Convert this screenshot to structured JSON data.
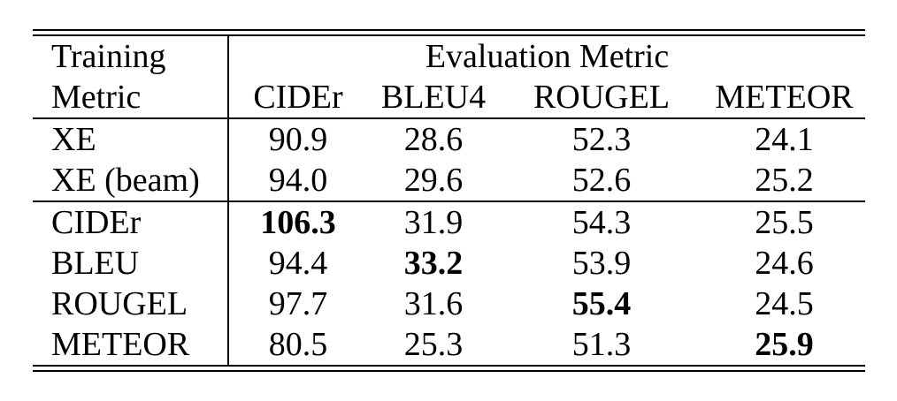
{
  "page": {
    "background_color": "#ffffff",
    "text_color": "#000000"
  },
  "table": {
    "row_header": {
      "line1": "Training",
      "line2": "Metric"
    },
    "group_header": "Evaluation Metric",
    "columns": [
      "CIDEr",
      "BLEU4",
      "ROUGEL",
      "METEOR"
    ],
    "groups": [
      {
        "rows": [
          {
            "label": "XE",
            "values": [
              "90.9",
              "28.6",
              "52.3",
              "24.1"
            ],
            "bold_index": null
          },
          {
            "label": "XE (beam)",
            "values": [
              "94.0",
              "29.6",
              "52.6",
              "25.2"
            ],
            "bold_index": null
          }
        ]
      },
      {
        "rows": [
          {
            "label": "CIDEr",
            "values": [
              "106.3",
              "31.9",
              "54.3",
              "25.5"
            ],
            "bold_index": 0
          },
          {
            "label": "BLEU",
            "values": [
              "94.4",
              "33.2",
              "53.9",
              "24.6"
            ],
            "bold_index": 1
          },
          {
            "label": "ROUGEL",
            "values": [
              "97.7",
              "31.6",
              "55.4",
              "24.5"
            ],
            "bold_index": 2
          },
          {
            "label": "METEOR",
            "values": [
              "80.5",
              "25.3",
              "51.3",
              "25.9"
            ],
            "bold_index": 3
          }
        ]
      }
    ]
  }
}
